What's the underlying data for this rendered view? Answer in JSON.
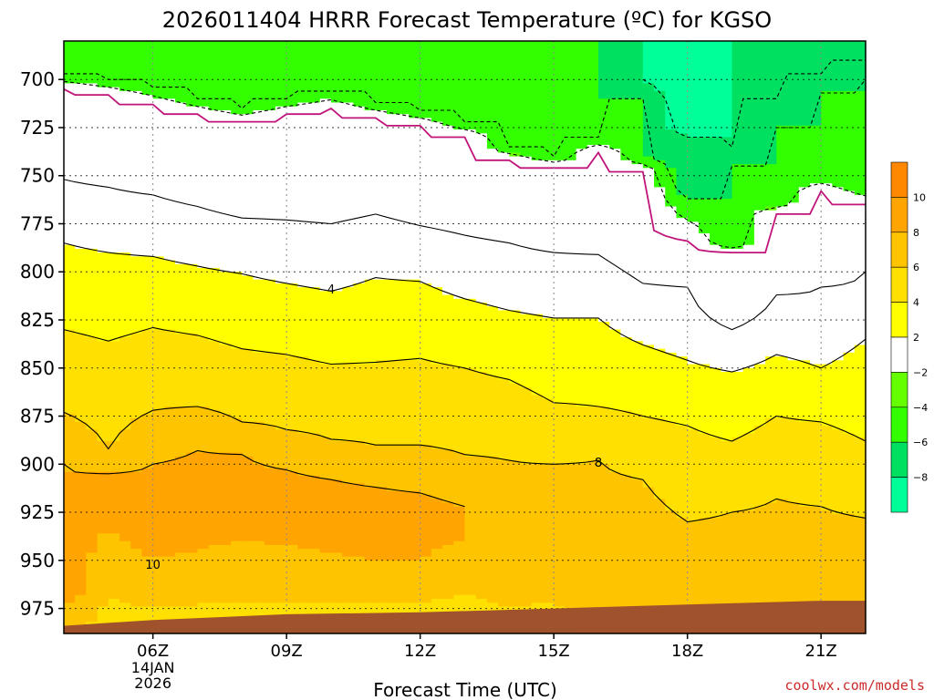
{
  "chart_data": {
    "type": "heatmap",
    "title": "2026011404 HRRR Forecast Temperature (ºC) for KGSO",
    "xlabel": "Forecast Time (UTC)",
    "ylabel": "",
    "x_ticks": [
      {
        "hour": 6,
        "label": "06Z",
        "sub": [
          "14JAN",
          "2026"
        ]
      },
      {
        "hour": 9,
        "label": "09Z"
      },
      {
        "hour": 12,
        "label": "12Z"
      },
      {
        "hour": 15,
        "label": "15Z"
      },
      {
        "hour": 18,
        "label": "18Z"
      },
      {
        "hour": 21,
        "label": "21Z"
      }
    ],
    "y_ticks": [
      700,
      725,
      750,
      775,
      800,
      825,
      850,
      875,
      900,
      925,
      950,
      975
    ],
    "xlim": [
      4,
      22
    ],
    "ylim": [
      680,
      988
    ],
    "y_reversed": true,
    "grid": true,
    "levels": [
      -10,
      -8,
      -6,
      -4,
      -2,
      2,
      4,
      6,
      8,
      10,
      12
    ],
    "colorbar_labels": [
      "10",
      "8",
      "6",
      "4",
      "2",
      "−2",
      "−4",
      "−6",
      "−8"
    ],
    "band_colors": {
      "-10": "#00ff99",
      "-8": "#00ff99",
      "-6": "#00e060",
      "-4": "#33ff00",
      "-2": "#66ff00",
      "2": "#ffffff",
      "4": "#ffff00",
      "6": "#ffe000",
      "8": "#ffc400",
      "10": "#ffa400",
      "12": "#ff8800"
    },
    "surface_color": "#a0522d",
    "contour_labels": [
      {
        "text": "4",
        "hour": 10,
        "p": 809
      },
      {
        "text": "8",
        "hour": 16,
        "p": 899
      },
      {
        "text": "10",
        "hour": 6,
        "p": 952
      }
    ],
    "zero_line_color": "#c0147a",
    "hours": [
      4,
      5,
      6,
      7,
      8,
      9,
      10,
      11,
      12,
      13,
      14,
      15,
      16,
      17,
      18,
      19,
      20,
      21,
      22
    ],
    "series": [
      {
        "hour": 4,
        "profile": [
          [
            680,
            -4
          ],
          [
            697,
            -4
          ],
          [
            705,
            0
          ],
          [
            730,
            0
          ],
          [
            752,
            2
          ],
          [
            785,
            4
          ],
          [
            830,
            6
          ],
          [
            873,
            8
          ],
          [
            900,
            10
          ],
          [
            940,
            10.5
          ],
          [
            962,
            12
          ],
          [
            975,
            10
          ],
          [
            986,
            9
          ]
        ]
      },
      {
        "hour": 5,
        "profile": [
          [
            680,
            -4
          ],
          [
            700,
            -4
          ],
          [
            708,
            0
          ],
          [
            732,
            0
          ],
          [
            756,
            2
          ],
          [
            790,
            4
          ],
          [
            836,
            6
          ],
          [
            892,
            8
          ],
          [
            905,
            10
          ],
          [
            935,
            10
          ],
          [
            955,
            9
          ],
          [
            970,
            8
          ],
          [
            986,
            7
          ]
        ]
      },
      {
        "hour": 6,
        "profile": [
          [
            680,
            -4
          ],
          [
            704,
            -4
          ],
          [
            713,
            0
          ],
          [
            737,
            0
          ],
          [
            760,
            2
          ],
          [
            792,
            4
          ],
          [
            829,
            6
          ],
          [
            872,
            8
          ],
          [
            900,
            10
          ],
          [
            923,
            11
          ],
          [
            950,
            10
          ],
          [
            963,
            9
          ],
          [
            975,
            8
          ],
          [
            986,
            7
          ]
        ]
      },
      {
        "hour": 7,
        "profile": [
          [
            680,
            -4
          ],
          [
            710,
            -4
          ],
          [
            718,
            0
          ],
          [
            741,
            0
          ],
          [
            766,
            2
          ],
          [
            797,
            4
          ],
          [
            833,
            6
          ],
          [
            870,
            8
          ],
          [
            893,
            10
          ],
          [
            918,
            11
          ],
          [
            945,
            10
          ],
          [
            960,
            9
          ],
          [
            973,
            8
          ],
          [
            986,
            7
          ]
        ]
      },
      {
        "hour": 8,
        "profile": [
          [
            680,
            -4
          ],
          [
            715,
            -4
          ],
          [
            722,
            0
          ],
          [
            746,
            0
          ],
          [
            772,
            2
          ],
          [
            801,
            4
          ],
          [
            840,
            6
          ],
          [
            878,
            8
          ],
          [
            895,
            10
          ],
          [
            918,
            11
          ],
          [
            940,
            10
          ],
          [
            958,
            9
          ],
          [
            972,
            8
          ],
          [
            986,
            7
          ]
        ]
      },
      {
        "hour": 9,
        "profile": [
          [
            680,
            -4
          ],
          [
            710,
            -4
          ],
          [
            718,
            0
          ],
          [
            745,
            0
          ],
          [
            773,
            2
          ],
          [
            806,
            4
          ],
          [
            843,
            6
          ],
          [
            882,
            8
          ],
          [
            903,
            10
          ],
          [
            920,
            11
          ],
          [
            942,
            10
          ],
          [
            962,
            9
          ],
          [
            973,
            8
          ],
          [
            986,
            7
          ]
        ]
      },
      {
        "hour": 10,
        "profile": [
          [
            680,
            -4
          ],
          [
            706,
            -4
          ],
          [
            715,
            0
          ],
          [
            742,
            0
          ],
          [
            775,
            2
          ],
          [
            810,
            4
          ],
          [
            848,
            6
          ],
          [
            887,
            8
          ],
          [
            908,
            10
          ],
          [
            923,
            11
          ],
          [
            946,
            10
          ],
          [
            960,
            9
          ],
          [
            972,
            8
          ],
          [
            986,
            7
          ]
        ]
      },
      {
        "hour": 11,
        "profile": [
          [
            680,
            -4
          ],
          [
            712,
            -4
          ],
          [
            720,
            0
          ],
          [
            740,
            0
          ],
          [
            770,
            2
          ],
          [
            803,
            4
          ],
          [
            847,
            6
          ],
          [
            890,
            8
          ],
          [
            912,
            10
          ],
          [
            926,
            11
          ],
          [
            950,
            10
          ],
          [
            962,
            9
          ],
          [
            973,
            8
          ],
          [
            986,
            7
          ]
        ]
      },
      {
        "hour": 12,
        "profile": [
          [
            680,
            -4
          ],
          [
            716,
            -4
          ],
          [
            724,
            0
          ],
          [
            745,
            0
          ],
          [
            776,
            2
          ],
          [
            805,
            4
          ],
          [
            845,
            6
          ],
          [
            890,
            8
          ],
          [
            915,
            10
          ],
          [
            929,
            11
          ],
          [
            950,
            10
          ],
          [
            960,
            9
          ],
          [
            972,
            8
          ],
          [
            986,
            7
          ]
        ]
      },
      {
        "hour": 13,
        "profile": [
          [
            680,
            -4
          ],
          [
            722,
            -4
          ],
          [
            730,
            0
          ],
          [
            748,
            0
          ],
          [
            781,
            2
          ],
          [
            814,
            4
          ],
          [
            850,
            6
          ],
          [
            895,
            8
          ],
          [
            922,
            10
          ],
          [
            938,
            10
          ],
          [
            955,
            9
          ],
          [
            968,
            8
          ],
          [
            986,
            7
          ]
        ]
      },
      {
        "hour": 14,
        "profile": [
          [
            680,
            -4
          ],
          [
            735,
            -4
          ],
          [
            742,
            0
          ],
          [
            755,
            0
          ],
          [
            785,
            2
          ],
          [
            820,
            4
          ],
          [
            856,
            6
          ],
          [
            898,
            8
          ],
          [
            942,
            9
          ],
          [
            958,
            8.5
          ],
          [
            975,
            8
          ],
          [
            986,
            7
          ]
        ]
      },
      {
        "hour": 15,
        "profile": [
          [
            680,
            -4
          ],
          [
            740,
            -4
          ],
          [
            746,
            0
          ],
          [
            766,
            0
          ],
          [
            790,
            2
          ],
          [
            824,
            4
          ],
          [
            868,
            6
          ],
          [
            900,
            8
          ],
          [
            942,
            9
          ],
          [
            957,
            8.5
          ],
          [
            972,
            8
          ],
          [
            986,
            7
          ]
        ]
      },
      {
        "hour": 16,
        "profile": [
          [
            680,
            -4
          ],
          [
            730,
            -4
          ],
          [
            738,
            0
          ],
          [
            767,
            0
          ],
          [
            791,
            2
          ],
          [
            824,
            4
          ],
          [
            870,
            6
          ],
          [
            898,
            8
          ],
          [
            940,
            9
          ],
          [
            960,
            9
          ],
          [
            975,
            9
          ],
          [
            986,
            9
          ]
        ]
      },
      {
        "hour": 17,
        "profile": [
          [
            680,
            -6
          ],
          [
            700,
            -6
          ],
          [
            710,
            -4
          ],
          [
            740,
            -4
          ],
          [
            748,
            0
          ],
          [
            773,
            0
          ],
          [
            806,
            2
          ],
          [
            838,
            4
          ],
          [
            875,
            6
          ],
          [
            908,
            8
          ],
          [
            945,
            9
          ],
          [
            965,
            9
          ],
          [
            978,
            10
          ],
          [
            986,
            10
          ]
        ]
      },
      {
        "hour": 18,
        "profile": [
          [
            680,
            -8
          ],
          [
            722,
            -8
          ],
          [
            730,
            -6
          ],
          [
            754,
            -6
          ],
          [
            762,
            -4
          ],
          [
            784,
            0
          ],
          [
            808,
            2
          ],
          [
            846,
            4
          ],
          [
            880,
            6
          ],
          [
            930,
            8
          ],
          [
            960,
            9
          ],
          [
            974,
            10
          ],
          [
            986,
            10
          ]
        ]
      },
      {
        "hour": 19,
        "profile": [
          [
            680,
            -6
          ],
          [
            735,
            -6
          ],
          [
            745,
            -4
          ],
          [
            785,
            -4
          ],
          [
            790,
            0
          ],
          [
            815,
            0
          ],
          [
            830,
            2
          ],
          [
            852,
            4
          ],
          [
            888,
            6
          ],
          [
            925,
            8
          ],
          [
            963,
            9
          ],
          [
            986,
            10
          ]
        ]
      },
      {
        "hour": 20,
        "profile": [
          [
            680,
            -6
          ],
          [
            710,
            -6
          ],
          [
            725,
            -4
          ],
          [
            763,
            -4
          ],
          [
            770,
            0
          ],
          [
            803,
            0
          ],
          [
            812,
            2
          ],
          [
            843,
            4
          ],
          [
            875,
            6
          ],
          [
            918,
            8
          ],
          [
            958,
            9
          ],
          [
            986,
            10
          ]
        ]
      },
      {
        "hour": 21,
        "profile": [
          [
            680,
            -6
          ],
          [
            697,
            -6
          ],
          [
            707,
            -4
          ],
          [
            750,
            -4
          ],
          [
            758,
            0
          ],
          [
            800,
            0
          ],
          [
            808,
            2
          ],
          [
            850,
            4
          ],
          [
            878,
            6
          ],
          [
            922,
            8
          ],
          [
            956,
            9
          ],
          [
            986,
            10
          ]
        ]
      },
      {
        "hour": 22,
        "profile": [
          [
            680,
            -6
          ],
          [
            690,
            -6
          ],
          [
            700,
            -4
          ],
          [
            756,
            -4
          ],
          [
            765,
            0
          ],
          [
            795,
            0
          ],
          [
            800,
            2
          ],
          [
            835,
            4
          ],
          [
            888,
            6
          ],
          [
            928,
            8
          ],
          [
            955,
            9
          ],
          [
            986,
            10
          ]
        ]
      }
    ]
  },
  "credit": "coolwx.com/models"
}
